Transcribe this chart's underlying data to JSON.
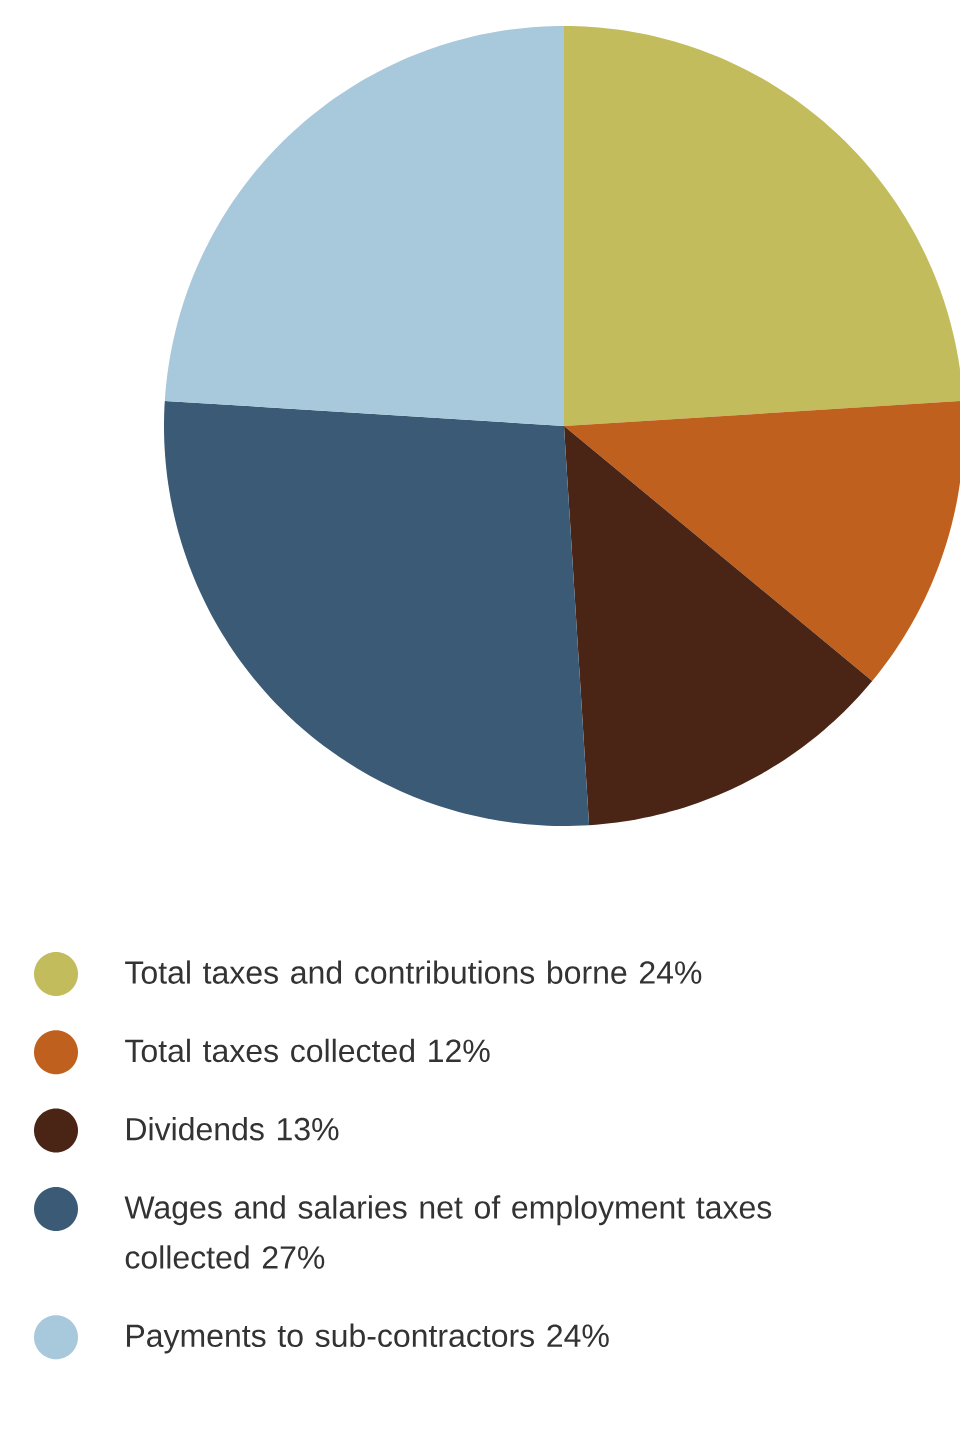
{
  "chart_data": {
    "type": "pie",
    "categories": [
      "Total taxes and contributions borne 24%",
      "Total taxes collected 12%",
      "Dividends 13%",
      "Wages and salaries net of employment taxes collected 27%",
      "Payments to sub-contractors 24%"
    ],
    "values": [
      24,
      12,
      13,
      27,
      24
    ],
    "colors": [
      "#c2bc5c",
      "#c0601e",
      "#4a2515",
      "#3a5a75",
      "#a8c8dc"
    ],
    "legend": "bottom"
  }
}
